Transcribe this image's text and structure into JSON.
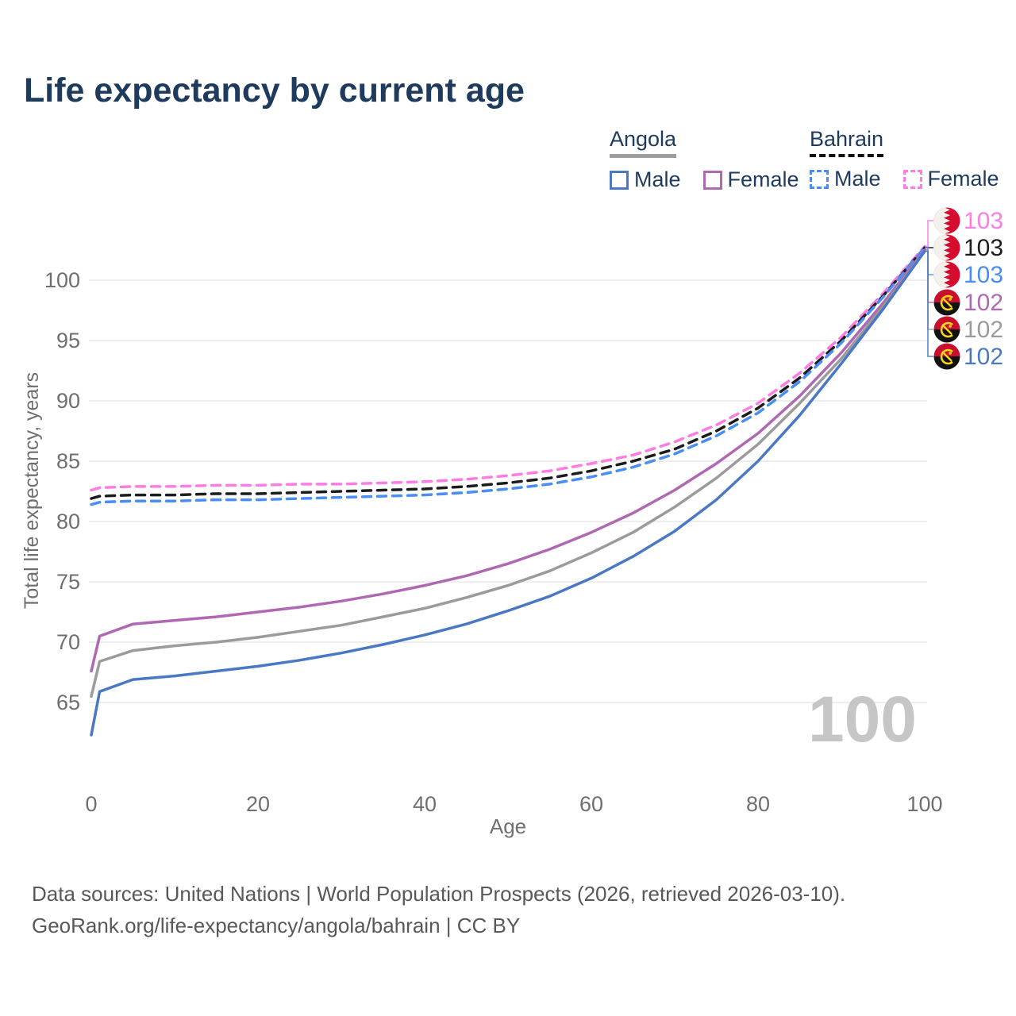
{
  "title": "Life expectancy by current age",
  "legend": {
    "angola": {
      "title": "Angola",
      "male": "Male",
      "female": "Female"
    },
    "bahrain": {
      "title": "Bahrain",
      "male": "Male",
      "female": "Female"
    }
  },
  "watermark": "100",
  "footer": {
    "line1": "Data sources: United Nations | World Population Prospects (2026, retrieved 2026-03-10).",
    "line2": "GeoRank.org/life-expectancy/angola/bahrain | CC BY"
  },
  "colors": {
    "title_navy": "#1e3a5c",
    "tick_gray": "#6f6f6f",
    "gridline": "#e9e9e9",
    "angola_male": "#4a78c4",
    "angola_female": "#af68b2",
    "angola_total": "#9b9b9b",
    "bahrain_male": "#4a8ef5",
    "bahrain_female": "#ff7ce5",
    "bahrain_total": "#1c1c1c",
    "watermark_gray": "#c6c6c6",
    "bahrain_flag_red": "#d50c2d",
    "angola_flag_red": "#c8102e",
    "angola_flag_black": "#121212",
    "angola_flag_yellow": "#f9d616"
  },
  "end_labels": [
    {
      "flag": "bahrain",
      "value": "103",
      "color": "#ff7ce5",
      "series": "bahrain_female"
    },
    {
      "flag": "bahrain",
      "value": "103",
      "color": "#1c1c1c",
      "series": "bahrain_total"
    },
    {
      "flag": "bahrain",
      "value": "103",
      "color": "#4a8ef5",
      "series": "bahrain_male"
    },
    {
      "flag": "angola",
      "value": "102",
      "color": "#af68b2",
      "series": "angola_female"
    },
    {
      "flag": "angola",
      "value": "102",
      "color": "#9b9b9b",
      "series": "angola_total"
    },
    {
      "flag": "angola",
      "value": "102",
      "color": "#4a78c4",
      "series": "angola_male"
    }
  ],
  "chart_data": {
    "type": "line",
    "title": "Life expectancy by current age",
    "xlabel": "Age",
    "ylabel": "Total life expectancy, years",
    "x_ticks": [
      0,
      20,
      40,
      60,
      80,
      100
    ],
    "y_ticks": [
      65,
      70,
      75,
      80,
      85,
      90,
      95,
      100
    ],
    "xlim": [
      0,
      100
    ],
    "ylim": [
      62,
      103.5
    ],
    "grid": "horizontal",
    "legend_position": "top-right",
    "x": [
      0,
      1,
      5,
      10,
      15,
      20,
      25,
      30,
      35,
      40,
      45,
      50,
      55,
      60,
      65,
      70,
      75,
      80,
      85,
      90,
      95,
      100
    ],
    "series": [
      {
        "key": "bahrain_female",
        "name": "Bahrain Female",
        "country": "Bahrain",
        "sex": "Female",
        "color": "#ff7ce5",
        "dash": true,
        "values": [
          82.6,
          82.8,
          82.9,
          82.9,
          83.0,
          83.0,
          83.1,
          83.1,
          83.2,
          83.3,
          83.5,
          83.8,
          84.2,
          84.8,
          85.5,
          86.6,
          88.0,
          89.8,
          92.3,
          95.3,
          98.9,
          102.8
        ]
      },
      {
        "key": "bahrain_total",
        "name": "Bahrain Both sexes",
        "country": "Bahrain",
        "sex": "Both",
        "color": "#1c1c1c",
        "dash": true,
        "values": [
          81.9,
          82.1,
          82.2,
          82.2,
          82.3,
          82.3,
          82.4,
          82.5,
          82.6,
          82.7,
          82.9,
          83.2,
          83.6,
          84.2,
          85.0,
          86.0,
          87.5,
          89.4,
          91.9,
          95.0,
          98.7,
          102.7
        ]
      },
      {
        "key": "bahrain_male",
        "name": "Bahrain Male",
        "country": "Bahrain",
        "sex": "Male",
        "color": "#4a8ef5",
        "dash": true,
        "values": [
          81.4,
          81.6,
          81.7,
          81.7,
          81.8,
          81.8,
          81.9,
          82.0,
          82.1,
          82.2,
          82.4,
          82.7,
          83.1,
          83.7,
          84.5,
          85.6,
          87.1,
          89.0,
          91.6,
          94.8,
          98.6,
          102.7
        ]
      },
      {
        "key": "angola_female",
        "name": "Angola Female",
        "country": "Angola",
        "sex": "Female",
        "color": "#af68b2",
        "dash": false,
        "values": [
          67.6,
          70.5,
          71.5,
          71.8,
          72.1,
          72.5,
          72.9,
          73.4,
          74.0,
          74.7,
          75.5,
          76.5,
          77.7,
          79.1,
          80.7,
          82.6,
          84.8,
          87.3,
          90.4,
          94.0,
          98.1,
          102.5
        ]
      },
      {
        "key": "angola_total",
        "name": "Angola Both sexes",
        "country": "Angola",
        "sex": "Both",
        "color": "#9b9b9b",
        "dash": false,
        "values": [
          65.5,
          68.4,
          69.3,
          69.7,
          70.0,
          70.4,
          70.9,
          71.4,
          72.1,
          72.8,
          73.7,
          74.7,
          75.9,
          77.4,
          79.1,
          81.2,
          83.6,
          86.4,
          89.8,
          93.5,
          97.8,
          102.4
        ]
      },
      {
        "key": "angola_male",
        "name": "Angola Male",
        "country": "Angola",
        "sex": "Male",
        "color": "#4a78c4",
        "dash": false,
        "values": [
          62.3,
          65.9,
          66.9,
          67.2,
          67.6,
          68.0,
          68.5,
          69.1,
          69.8,
          70.6,
          71.5,
          72.6,
          73.8,
          75.3,
          77.1,
          79.2,
          81.8,
          85.0,
          88.8,
          93.1,
          97.6,
          102.4
        ]
      }
    ]
  }
}
